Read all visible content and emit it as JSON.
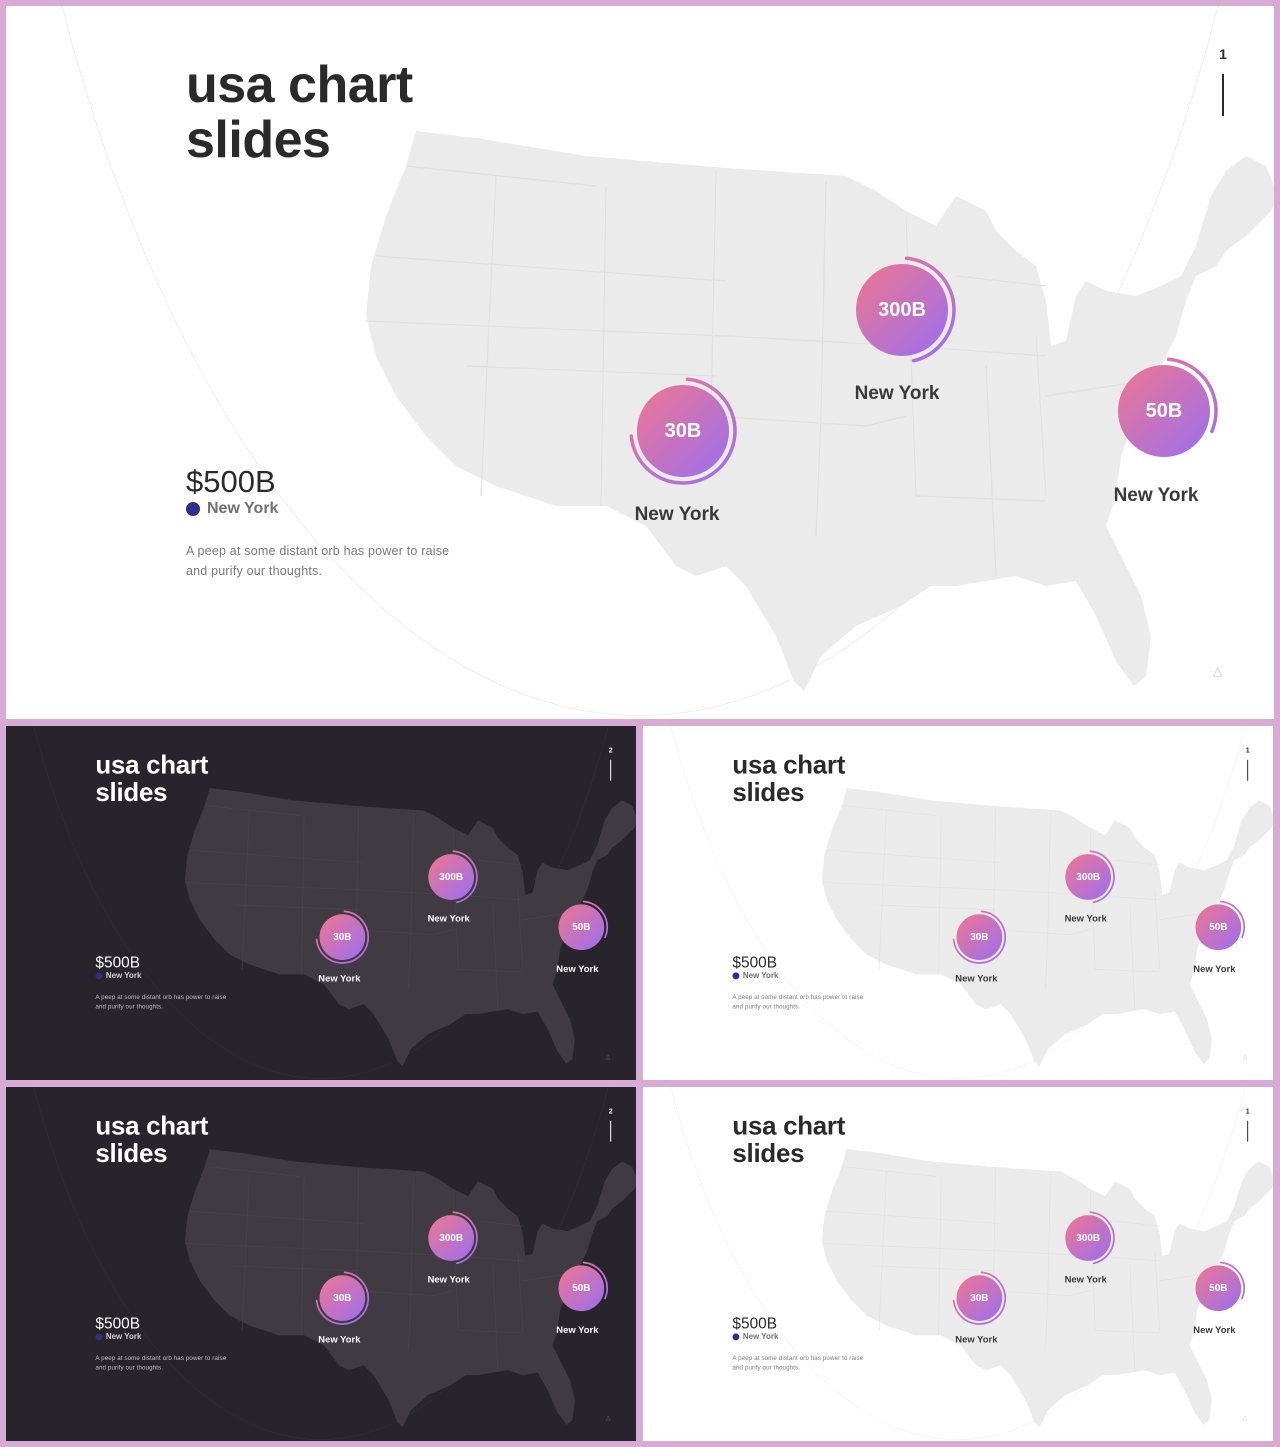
{
  "slides": [
    {
      "theme": "light",
      "title_line1": "usa chart",
      "title_line2": "slides",
      "page": "1"
    },
    {
      "theme": "dark",
      "title_line1": "usa chart",
      "title_line2": "slides",
      "page": "2"
    },
    {
      "theme": "light",
      "title_line1": "usa chart",
      "title_line2": "slides",
      "page": "1"
    },
    {
      "theme": "dark",
      "title_line1": "usa chart",
      "title_line2": "slides",
      "page": "2"
    },
    {
      "theme": "light",
      "title_line1": "usa chart",
      "title_line2": "slides",
      "page": "1"
    }
  ],
  "summary": {
    "total": "$500B",
    "legend_label": "New York",
    "legend_color": "#2d2f8a",
    "description_line1": "A peep at some distant orb has power to raise",
    "description_line2": "and purify our thoughts."
  },
  "bubbles": [
    {
      "value": "30B",
      "city": "New York"
    },
    {
      "value": "300B",
      "city": "New York"
    },
    {
      "value": "50B",
      "city": "New York"
    }
  ],
  "colors": {
    "frame": "#d8abd4",
    "dark_background": "#28242b",
    "bubble_gradient": [
      "#f0768f",
      "#9a6ff0"
    ]
  },
  "icons": {
    "scroll_up": "chevron-up-icon"
  }
}
